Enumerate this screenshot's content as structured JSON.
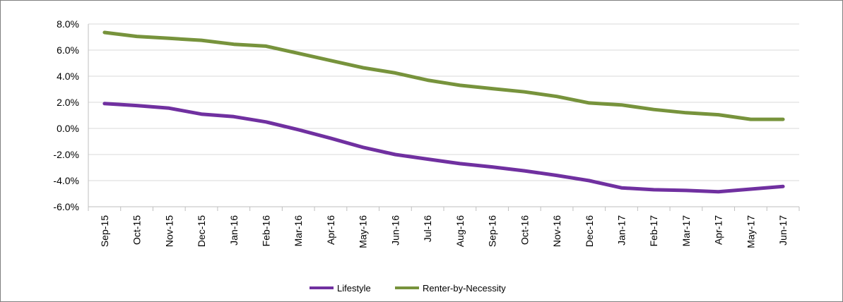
{
  "chart_data": {
    "type": "line",
    "title": "",
    "xlabel": "",
    "ylabel": "",
    "categories": [
      "Sep-15",
      "Oct-15",
      "Nov-15",
      "Dec-15",
      "Jan-16",
      "Feb-16",
      "Mar-16",
      "Apr-16",
      "May-16",
      "Jun-16",
      "Jul-16",
      "Aug-16",
      "Sep-16",
      "Oct-16",
      "Nov-16",
      "Dec-16",
      "Jan-17",
      "Feb-17",
      "Mar-17",
      "Apr-17",
      "May-17",
      "Jun-17"
    ],
    "yticks": [
      -6.0,
      -4.0,
      -2.0,
      0.0,
      2.0,
      4.0,
      6.0,
      8.0
    ],
    "ytick_labels": [
      "-6.0%",
      "-4.0%",
      "-2.0%",
      "0.0%",
      "2.0%",
      "4.0%",
      "6.0%",
      "8.0%"
    ],
    "ylim": [
      -6.0,
      8.0
    ],
    "grid": true,
    "legend_position": "bottom-center",
    "series": [
      {
        "name": "Lifestyle",
        "color": "#7030A0",
        "values": [
          1.9,
          1.75,
          1.55,
          1.1,
          0.9,
          0.5,
          -0.1,
          -0.75,
          -1.45,
          -2.0,
          -2.35,
          -2.7,
          -2.95,
          -3.25,
          -3.6,
          -4.0,
          -4.55,
          -4.7,
          -4.75,
          -4.85,
          -4.65,
          -4.45
        ]
      },
      {
        "name": "Renter-by-Necessity",
        "color": "#77933C",
        "values": [
          7.35,
          7.05,
          6.9,
          6.75,
          6.45,
          6.3,
          5.75,
          5.2,
          4.65,
          4.25,
          3.7,
          3.3,
          3.05,
          2.8,
          2.45,
          1.95,
          1.8,
          1.45,
          1.2,
          1.05,
          0.7,
          0.7
        ]
      }
    ]
  }
}
